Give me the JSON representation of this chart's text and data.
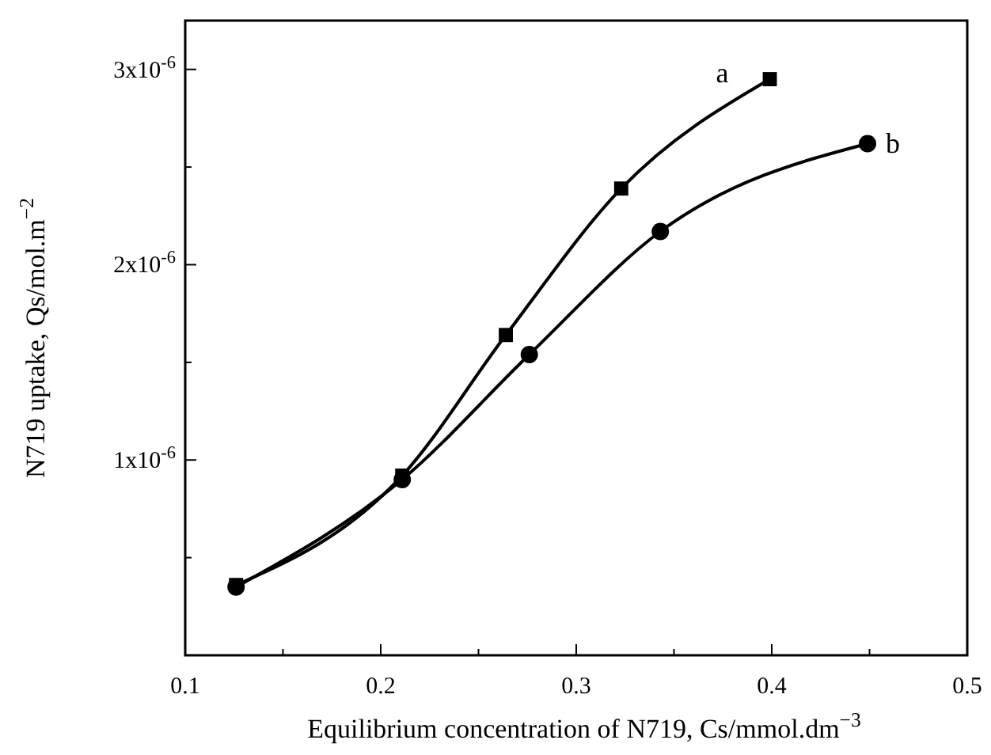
{
  "chart_data": {
    "type": "line",
    "xlabel": "Equilibrium concentration of N719, Cs/mmol.dm$^{−3}$",
    "ylabel": "N719 uptake, Qs/mol.m$^{−2}$",
    "series": [
      {
        "color": "#000000",
        "marker": "square",
        "x": [
          0.126,
          0.211,
          0.264,
          0.323,
          0.399
        ],
        "values": [
          3.6e-07,
          9.2e-07,
          1.64e-06,
          2.39e-06,
          2.95e-06
        ]
      },
      {
        "color": "#000000",
        "marker": "circle",
        "x": [
          0.126,
          0.211,
          0.276,
          0.343,
          0.449
        ],
        "values": [
          3.5e-07,
          9e-07,
          1.54e-06,
          2.17e-06,
          2.62e-06
        ]
      }
    ],
    "annotations": [
      "a",
      "b"
    ],
    "xlim": [
      0.1,
      0.5
    ],
    "ylim": [
      0,
      3.25e-06
    ],
    "xticks": [
      0.1,
      {
        "value": 0.15,
        "label": null
      },
      0.2,
      {
        "value": 0.25,
        "label": null
      },
      0.3,
      {
        "value": 0.35,
        "label": null
      },
      0.4,
      {
        "value": 0.45,
        "label": null
      },
      0.5
    ],
    "yticks": [
      {
        "value": 5e-07,
        "label": null
      },
      {
        "value": 1e-06,
        "label": "1x10$^{-6}$"
      },
      {
        "value": 1.5e-06,
        "label": null
      },
      {
        "value": 2e-06,
        "label": "2x10$^{-6}$"
      },
      {
        "value": 2.5e-06,
        "label": null
      },
      {
        "value": 3e-06,
        "label": "3x10$^{-6}$"
      }
    ],
    "line_style": "solid"
  }
}
